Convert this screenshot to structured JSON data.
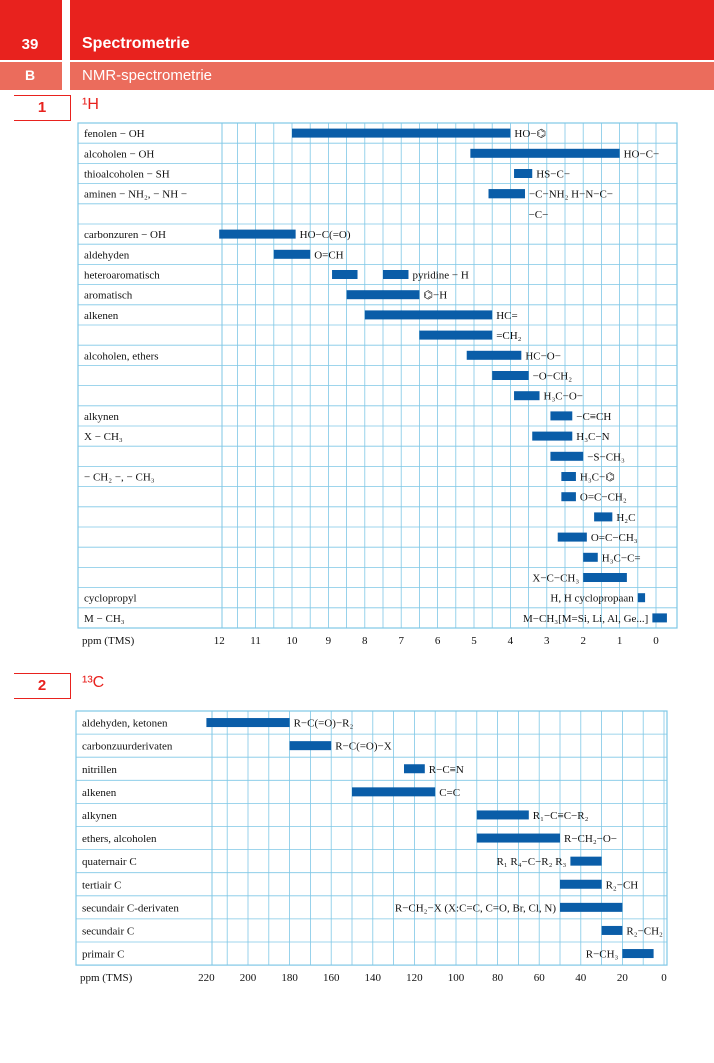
{
  "header": {
    "chapter": "39",
    "title": "Spectrometrie",
    "section_letter": "B",
    "subtitle": "NMR-spectrometrie"
  },
  "sections": [
    {
      "number": "1",
      "title": "¹H"
    },
    {
      "number": "2",
      "title": "¹³C"
    }
  ],
  "chart_data": [
    {
      "type": "bar",
      "title": "¹H",
      "xlabel": "ppm (TMS)",
      "xlim": [
        12.7,
        -0.3
      ],
      "x_ticks": [
        12,
        11,
        10,
        9,
        8,
        7,
        6,
        5,
        4,
        3,
        2,
        1,
        0
      ],
      "grid": true,
      "rows": [
        {
          "label": "fenolen − OH",
          "bars": [
            [
              10,
              4
            ]
          ],
          "annotation": "HO−⌬"
        },
        {
          "label": "alcoholen − OH",
          "bars": [
            [
              5.1,
              1
            ]
          ],
          "annotation": "HO−C−"
        },
        {
          "label": "thioalcoholen − SH",
          "bars": [
            [
              3.9,
              3.4
            ]
          ],
          "annotation": "HS−C−"
        },
        {
          "label": "aminen − NH₂, − NH −",
          "bars": [
            [
              4.6,
              3.6
            ],
            [
              4.6,
              3.6
            ]
          ],
          "annotation": "−C−NH₂   H−N−C−"
        },
        {
          "label": "",
          "bars": [],
          "annotation": "−C−"
        },
        {
          "label": "carbonzuren − OH",
          "bars": [
            [
              12,
              9.9
            ]
          ],
          "annotation": "HO−C(=O)"
        },
        {
          "label": "aldehyden",
          "bars": [
            [
              10.5,
              9.5
            ]
          ],
          "annotation": "O=CH"
        },
        {
          "label": "heteroaromatisch",
          "bars": [
            [
              8.9,
              8.2
            ],
            [
              7.5,
              6.8
            ]
          ],
          "annotation": "pyridine − H"
        },
        {
          "label": "aromatisch",
          "bars": [
            [
              8.5,
              6.5
            ]
          ],
          "annotation": "⌬−H"
        },
        {
          "label": "alkenen",
          "bars": [
            [
              8,
              4.5
            ]
          ],
          "annotation": "HC="
        },
        {
          "label": "",
          "bars": [
            [
              6.5,
              4.5
            ]
          ],
          "annotation": "=CH₂"
        },
        {
          "label": "alcoholen, ethers",
          "bars": [
            [
              5.2,
              3.7
            ]
          ],
          "annotation": "HC−O−"
        },
        {
          "label": "",
          "bars": [
            [
              4.5,
              3.5
            ]
          ],
          "annotation": "−O−CH₂"
        },
        {
          "label": "",
          "bars": [
            [
              3.9,
              3.2
            ]
          ],
          "annotation": "H₃C−O−"
        },
        {
          "label": "alkynen",
          "bars": [
            [
              2.9,
              2.3
            ]
          ],
          "annotation": "−C≡CH"
        },
        {
          "label": "X − CH₃",
          "bars": [
            [
              3.4,
              2.3
            ]
          ],
          "annotation": "H₃C−N"
        },
        {
          "label": "",
          "bars": [
            [
              2.9,
              2
            ]
          ],
          "annotation": "−S−CH₃"
        },
        {
          "label": "− CH₂ −, − CH₃",
          "bars": [
            [
              2.6,
              2.2
            ]
          ],
          "annotation": "H₃C−⌬"
        },
        {
          "label": "",
          "bars": [
            [
              2.6,
              2.2
            ]
          ],
          "annotation": "O=C−CH₂"
        },
        {
          "label": "",
          "bars": [
            [
              1.7,
              1.2
            ]
          ],
          "annotation": "H₂C"
        },
        {
          "label": "",
          "bars": [
            [
              2.7,
              1.9
            ]
          ],
          "annotation": "O=C−CH₃"
        },
        {
          "label": "",
          "bars": [
            [
              2,
              1.6
            ]
          ],
          "annotation": "H₃C−C="
        },
        {
          "label": "",
          "bars": [
            [
              2,
              0.8
            ]
          ],
          "annotation": "X−C−CH₃"
        },
        {
          "label": "cyclopropyl",
          "bars": [
            [
              0.5,
              0.3
            ]
          ],
          "annotation": "H, H cyclopropaan"
        },
        {
          "label": "M − CH₃",
          "bars": [
            [
              0.1,
              -0.3
            ]
          ],
          "annotation": "M−CH₃[M=Si, Li, Al, Ge...]"
        }
      ]
    },
    {
      "type": "bar",
      "title": "¹³C",
      "xlabel": "ppm (TMS)",
      "xlim": [
        230,
        -10
      ],
      "x_ticks": [
        220,
        200,
        180,
        160,
        140,
        120,
        100,
        80,
        60,
        40,
        20,
        0
      ],
      "grid": true,
      "rows": [
        {
          "label": "aldehyden, ketonen",
          "bars": [
            [
              220,
              180
            ]
          ],
          "annotation": "R−C(=O)−R₂"
        },
        {
          "label": "carbonzuurderivaten",
          "bars": [
            [
              180,
              160
            ]
          ],
          "annotation": "R−C(=O)−X"
        },
        {
          "label": "nitrillen",
          "bars": [
            [
              125,
              115
            ]
          ],
          "annotation": "R−C≡N"
        },
        {
          "label": "alkenen",
          "bars": [
            [
              150,
              110
            ]
          ],
          "annotation": "C=C"
        },
        {
          "label": "alkynen",
          "bars": [
            [
              90,
              65
            ]
          ],
          "annotation": "R₁−C≡C−R₂"
        },
        {
          "label": "ethers, alcoholen",
          "bars": [
            [
              90,
              50
            ]
          ],
          "annotation": "R−CH₂−O−"
        },
        {
          "label": "quaternair C",
          "bars": [
            [
              45,
              30
            ]
          ],
          "annotation": "R₁ R₄−C−R₂ R₃"
        },
        {
          "label": "tertiair C",
          "bars": [
            [
              50,
              30
            ]
          ],
          "annotation": "R₂−CH"
        },
        {
          "label": "secundair C-derivaten",
          "bars": [
            [
              50,
              20
            ]
          ],
          "annotation": "R−CH₂−X (X:C=C, C=O, Br, Cl, N)"
        },
        {
          "label": "secundair C",
          "bars": [
            [
              30,
              20
            ]
          ],
          "annotation": "R₂−CH₂"
        },
        {
          "label": "primair C",
          "bars": [
            [
              20,
              5
            ]
          ],
          "annotation": "R−CH₃"
        }
      ]
    }
  ]
}
